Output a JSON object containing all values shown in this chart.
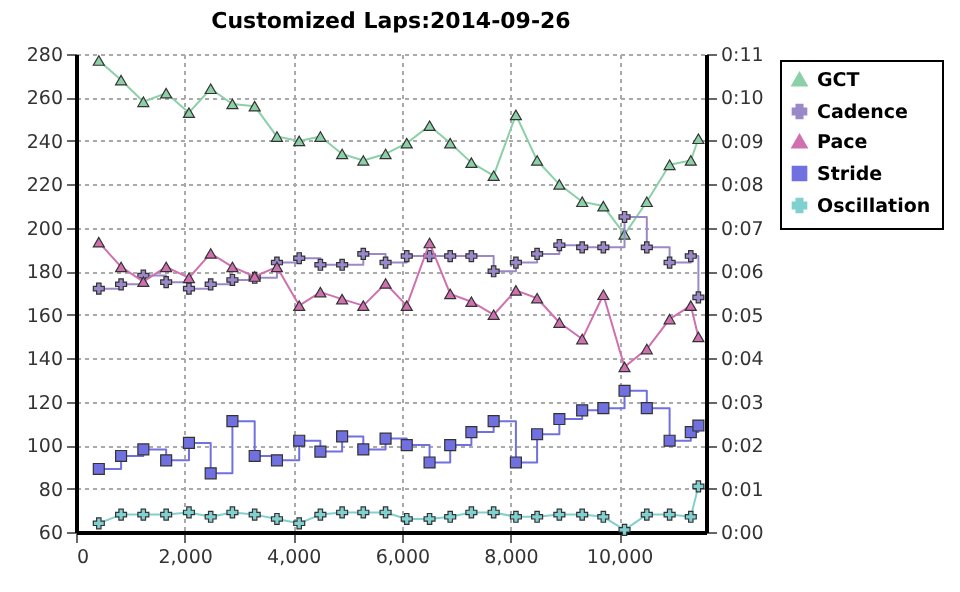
{
  "chart_data": {
    "type": "line",
    "title": "Customized Laps:2014-09-26",
    "x": [
      420,
      830,
      1240,
      1660,
      2080,
      2480,
      2880,
      3290,
      3700,
      4110,
      4500,
      4900,
      5290,
      5700,
      6090,
      6510,
      6890,
      7280,
      7690,
      8100,
      8490,
      8900,
      9320,
      9710,
      10100,
      10510,
      10930,
      11320,
      11460
    ],
    "series": [
      {
        "name": "GCT",
        "marker": "triangle",
        "color": "#8cd0a8",
        "values": [
          277,
          268,
          258,
          262,
          253,
          264,
          257,
          256,
          242,
          240,
          242,
          234,
          231,
          234,
          239,
          247,
          239,
          230,
          224,
          252,
          231,
          220,
          212,
          210,
          197,
          212,
          229,
          231,
          241
        ]
      },
      {
        "name": "Cadence",
        "type": "step",
        "marker": "cross",
        "color": "#9a88c8",
        "values": [
          172,
          174,
          178,
          175,
          172,
          174,
          176,
          177,
          184,
          186,
          183,
          183,
          188,
          184,
          187,
          187,
          187,
          187,
          180,
          184,
          188,
          192,
          191,
          191,
          205,
          191,
          184,
          187,
          168
        ]
      },
      {
        "name": "Pace",
        "marker": "triangle",
        "axis": "y2",
        "color": "#d070b0",
        "values": [
          6.67,
          6.1,
          5.76,
          6.1,
          5.85,
          6.41,
          6.1,
          5.88,
          6.1,
          5.21,
          5.52,
          5.36,
          5.21,
          5.72,
          5.21,
          6.65,
          5.48,
          5.3,
          5.0,
          5.56,
          5.38,
          4.82,
          4.44,
          5.46,
          3.8,
          4.21,
          4.9,
          5.21,
          4.49
        ]
      },
      {
        "name": "Stride",
        "type": "step",
        "marker": "square",
        "color": "#7070e0",
        "values": [
          89,
          95,
          98,
          93,
          101,
          87,
          111,
          95,
          93,
          102,
          97,
          104,
          98,
          103,
          100,
          92,
          100,
          106,
          111,
          92,
          105,
          112,
          116,
          117,
          125,
          117,
          102,
          106,
          109
        ]
      },
      {
        "name": "Oscillation",
        "marker": "cross",
        "color": "#80d0d0",
        "values": [
          64,
          68,
          68,
          68,
          69,
          67,
          69,
          68,
          66,
          64,
          68,
          69,
          69,
          69,
          66,
          66,
          67,
          69,
          69,
          67,
          67,
          68,
          68,
          67,
          61,
          68,
          68,
          67,
          81
        ]
      }
    ],
    "xlim": [
      0,
      11600
    ],
    "xticks": [
      0,
      {
        "value": 2000,
        "label": "2,000"
      },
      {
        "value": 4000,
        "label": "4,000"
      },
      {
        "value": 6000,
        "label": "6,000"
      },
      {
        "value": 8000,
        "label": "8,000"
      },
      {
        "value": 10000,
        "label": "10,000"
      }
    ],
    "ylim": [
      60,
      280
    ],
    "yticks": [
      60,
      80,
      100,
      120,
      140,
      160,
      180,
      200,
      220,
      240,
      260,
      280
    ],
    "y2lim": [
      0,
      11
    ],
    "y2ticks": [
      {
        "value": 0,
        "label": "0:00"
      },
      {
        "value": 1,
        "label": "0:01"
      },
      {
        "value": 2,
        "label": "0:02"
      },
      {
        "value": 3,
        "label": "0:03"
      },
      {
        "value": 4,
        "label": "0:04"
      },
      {
        "value": 5,
        "label": "0:05"
      },
      {
        "value": 6,
        "label": "0:06"
      },
      {
        "value": 7,
        "label": "0:07"
      },
      {
        "value": 8,
        "label": "0:08"
      },
      {
        "value": 9,
        "label": "0:09"
      },
      {
        "value": 10,
        "label": "0:10"
      },
      {
        "value": 11,
        "label": "0:11"
      }
    ],
    "grid": true,
    "legend": "right"
  }
}
